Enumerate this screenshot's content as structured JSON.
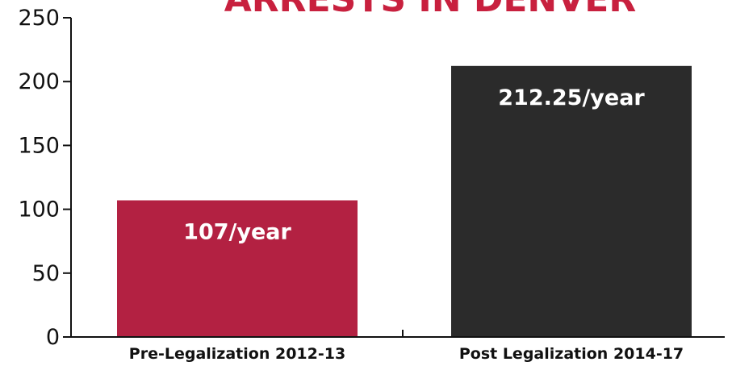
{
  "chart_data": {
    "type": "bar",
    "title": "ARRESTS IN DENVER",
    "categories": [
      "Pre-Legalization 2012-13",
      "Post Legalization 2014-17"
    ],
    "values": [
      107,
      212.25
    ],
    "data_labels": [
      "107/year",
      "212.25/year"
    ],
    "bar_colors": [
      "#b32142",
      "#2b2b2b"
    ],
    "title_color": "#c8203e",
    "label_color": "#ffffff",
    "axis_color": "#111111",
    "ylim": [
      0,
      250
    ],
    "yticks": [
      0,
      50,
      100,
      150,
      200,
      250
    ],
    "xlabel": "",
    "ylabel": "",
    "grid": false,
    "legend": "none"
  }
}
